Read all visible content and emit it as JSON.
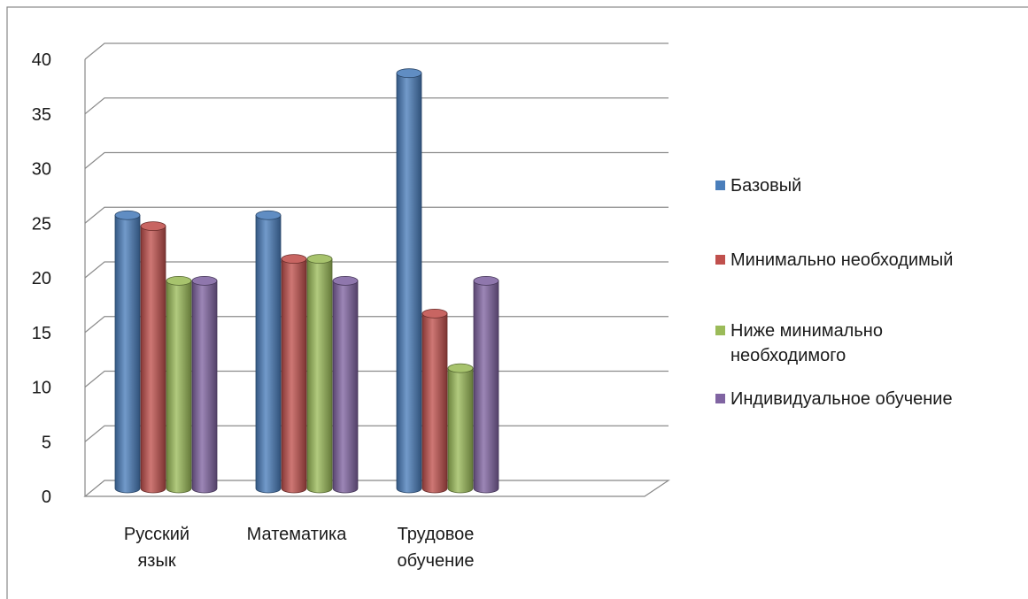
{
  "chart_data": {
    "type": "bar",
    "categories": [
      "Русский язык",
      "Математика",
      "Трудовое обучение"
    ],
    "category_lines": [
      [
        "Русский",
        "язык"
      ],
      [
        "Математика"
      ],
      [
        "Трудовое",
        "обучение"
      ]
    ],
    "series": [
      {
        "name": "Базовый",
        "color": "#4a7ebb",
        "values": [
          25,
          25,
          38
        ]
      },
      {
        "name": "Минимально необходимый",
        "color": "#c0504d",
        "values": [
          24,
          21,
          16
        ]
      },
      {
        "name": "Ниже минимально необходимого",
        "color": "#9bbb59",
        "values": [
          19,
          21,
          11
        ]
      },
      {
        "name": "Индивидуальное обучение",
        "color": "#8064a2",
        "values": [
          19,
          19,
          19
        ]
      }
    ],
    "y_ticks": [
      "0",
      "5",
      "10",
      "15",
      "20",
      "25",
      "30",
      "35",
      "40"
    ],
    "ylim": [
      0,
      40
    ],
    "grid": true,
    "legend_position": "right",
    "style": "3d-cylinder"
  }
}
